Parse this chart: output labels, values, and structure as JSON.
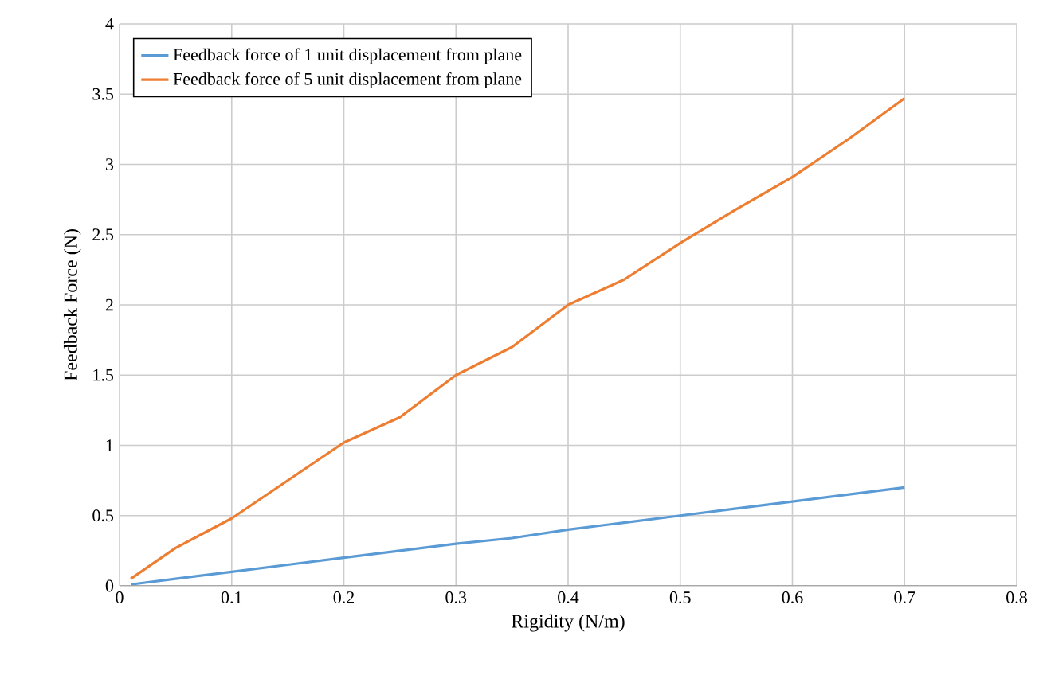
{
  "chart_data": {
    "type": "line",
    "xlabel": "Rigidity (N/m)",
    "ylabel": "Feedback Force (N)",
    "xlim": [
      0,
      0.8
    ],
    "xticks": [
      0,
      0.1,
      0.2,
      0.3,
      0.4,
      0.5,
      0.6,
      0.7,
      0.8
    ],
    "ylim": [
      0,
      4
    ],
    "yticks": [
      0,
      0.5,
      1,
      1.5,
      2,
      2.5,
      3,
      3.5,
      4
    ],
    "grid": true,
    "legend": "top left",
    "marker": "none",
    "line_style": "solid",
    "x": [
      0.01,
      0.05,
      0.1,
      0.15,
      0.2,
      0.25,
      0.3,
      0.35,
      0.4,
      0.45,
      0.5,
      0.55,
      0.6,
      0.65,
      0.7
    ],
    "series": [
      {
        "name": "Feedback force of  1 unit displacement from plane",
        "color": "#5b9bd5",
        "values": [
          0.01,
          0.05,
          0.1,
          0.15,
          0.2,
          0.25,
          0.3,
          0.34,
          0.4,
          0.45,
          0.5,
          0.55,
          0.6,
          0.65,
          0.7
        ]
      },
      {
        "name": "Feedback force of  5 unit displacement from plane",
        "color": "#ed7d31",
        "values": [
          0.05,
          0.27,
          0.48,
          0.75,
          1.02,
          1.2,
          1.5,
          1.7,
          2.0,
          2.18,
          2.44,
          2.68,
          2.91,
          3.18,
          3.47
        ]
      }
    ]
  }
}
